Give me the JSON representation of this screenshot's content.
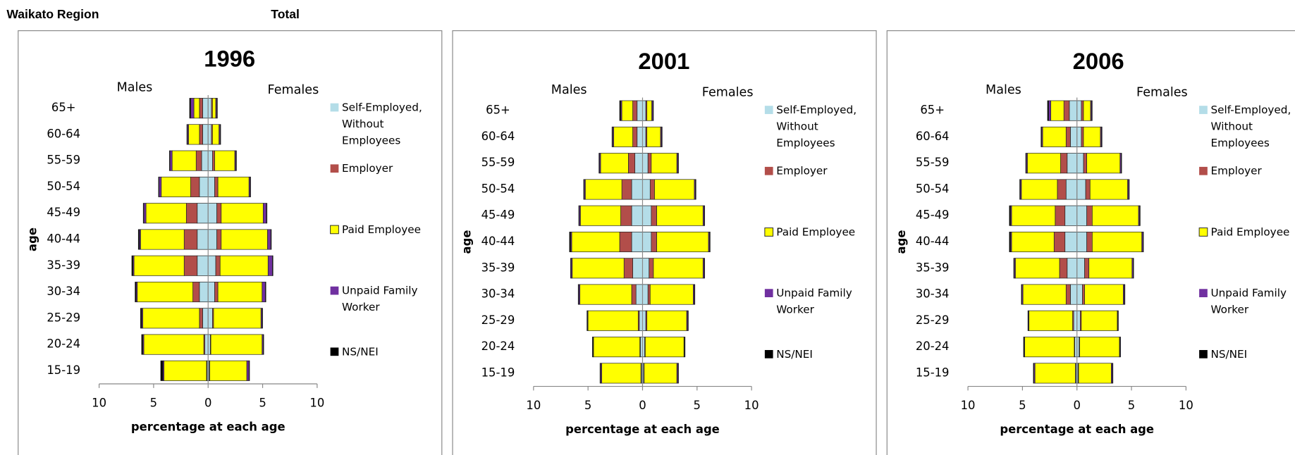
{
  "header": {
    "region": "Waikato Region",
    "subset": "Total"
  },
  "chart_data": [
    {
      "type": "pyramid",
      "title": "1996",
      "left_label": "Males",
      "right_label": "Females",
      "x_label": "percentage at each age",
      "y_label": "age",
      "categories": [
        "15-19",
        "20-24",
        "25-29",
        "30-34",
        "35-39",
        "40-44",
        "45-49",
        "50-54",
        "55-59",
        "60-64",
        "65+"
      ],
      "xlim": [
        -10,
        10
      ],
      "xticks": [
        {
          "value": -10,
          "label": "10"
        },
        {
          "value": -5,
          "label": "5"
        },
        0,
        5,
        10
      ],
      "series": [
        {
          "name": "Self-Employed, Without Employees",
          "color": "#b4dde8",
          "males": [
            -0.1,
            -0.3,
            -0.5,
            -0.8,
            -1.0,
            -1.0,
            -1.0,
            -0.8,
            -0.6,
            -0.5,
            -0.5
          ],
          "females": [
            0.1,
            0.2,
            0.4,
            0.6,
            0.7,
            0.8,
            0.8,
            0.6,
            0.4,
            0.3,
            0.3
          ]
        },
        {
          "name": "Employer",
          "color": "#b24e4a",
          "males": [
            -0.05,
            -0.1,
            -0.3,
            -0.6,
            -1.2,
            -1.2,
            -1.0,
            -0.8,
            -0.5,
            -0.3,
            -0.3
          ],
          "females": [
            0.05,
            0.05,
            0.1,
            0.3,
            0.4,
            0.4,
            0.4,
            0.3,
            0.2,
            0.1,
            0.1
          ]
        },
        {
          "name": "Paid Employee",
          "color": "#ffff00",
          "males": [
            -3.9,
            -5.5,
            -5.2,
            -5.1,
            -4.6,
            -4.0,
            -3.7,
            -2.7,
            -2.2,
            -1.0,
            -0.5
          ],
          "females": [
            3.4,
            4.7,
            4.35,
            4.05,
            4.4,
            4.25,
            3.85,
            2.85,
            1.85,
            0.6,
            0.3
          ]
        },
        {
          "name": "Unpaid Family Worker",
          "color": "#7030a0",
          "males": [
            -0.1,
            -0.1,
            -0.1,
            -0.1,
            -0.1,
            -0.1,
            -0.2,
            -0.2,
            -0.2,
            -0.1,
            -0.3
          ],
          "females": [
            0.2,
            0.1,
            0.1,
            0.3,
            0.4,
            0.3,
            0.3,
            0.1,
            0.1,
            0.1,
            0.1
          ]
        },
        {
          "name": "NS/NEI",
          "color": "#000000",
          "males": [
            -0.2,
            -0.1,
            -0.1,
            -0.1,
            -0.1,
            -0.1,
            -0.05,
            -0.05,
            -0.05,
            -0.05,
            -0.1
          ],
          "females": [
            0.05,
            0.05,
            0.05,
            0.05,
            0.05,
            0.05,
            0.05,
            0.05,
            0.05,
            0.05,
            0.05
          ]
        }
      ]
    },
    {
      "type": "pyramid",
      "title": "2001",
      "left_label": "Males",
      "right_label": "Females",
      "x_label": "percentage at each age",
      "y_label": "age",
      "categories": [
        "15-19",
        "20-24",
        "25-29",
        "30-34",
        "35-39",
        "40-44",
        "45-49",
        "50-54",
        "55-59",
        "60-64",
        "65+"
      ],
      "xlim": [
        -10,
        10
      ],
      "xticks": [
        {
          "value": -10,
          "label": "10"
        },
        {
          "value": -5,
          "label": "5"
        },
        0,
        5,
        10
      ],
      "series": [
        {
          "name": "Self-Employed, Without Employees",
          "color": "#b4dde8",
          "males": [
            -0.1,
            -0.2,
            -0.3,
            -0.6,
            -0.9,
            -1.0,
            -1.0,
            -1.0,
            -0.7,
            -0.5,
            -0.5
          ],
          "females": [
            0.1,
            0.2,
            0.3,
            0.5,
            0.6,
            0.8,
            0.8,
            0.7,
            0.5,
            0.3,
            0.3
          ]
        },
        {
          "name": "Employer",
          "color": "#b24e4a",
          "males": [
            -0.05,
            -0.05,
            -0.1,
            -0.4,
            -0.8,
            -1.1,
            -1.0,
            -0.9,
            -0.6,
            -0.4,
            -0.4
          ],
          "females": [
            0.05,
            0.05,
            0.1,
            0.2,
            0.4,
            0.5,
            0.5,
            0.4,
            0.3,
            0.1,
            0.1
          ]
        },
        {
          "name": "Paid Employee",
          "color": "#ffff00",
          "males": [
            -3.6,
            -4.25,
            -4.6,
            -4.75,
            -4.75,
            -4.4,
            -3.7,
            -3.35,
            -2.55,
            -1.75,
            -1.0
          ],
          "females": [
            3.0,
            3.55,
            3.65,
            3.95,
            4.55,
            4.75,
            4.25,
            3.65,
            2.35,
            1.25,
            0.45
          ]
        },
        {
          "name": "Unpaid Family Worker",
          "color": "#7030a0",
          "males": [
            -0.1,
            -0.05,
            -0.05,
            -0.1,
            -0.1,
            -0.1,
            -0.1,
            -0.1,
            -0.1,
            -0.1,
            -0.1
          ],
          "females": [
            0.1,
            0.05,
            0.1,
            0.1,
            0.1,
            0.1,
            0.1,
            0.1,
            0.1,
            0.1,
            0.1
          ]
        },
        {
          "name": "NS/NEI",
          "color": "#000000",
          "males": [
            -0.05,
            -0.05,
            -0.05,
            -0.05,
            -0.05,
            -0.1,
            -0.05,
            -0.05,
            -0.05,
            -0.05,
            -0.1
          ],
          "females": [
            0.05,
            0.05,
            0.05,
            0.05,
            0.05,
            0.05,
            0.05,
            0.05,
            0.05,
            0.05,
            0.05
          ]
        }
      ]
    },
    {
      "type": "pyramid",
      "title": "2006",
      "left_label": "Males",
      "right_label": "Females",
      "x_label": "percentage at each age",
      "y_label": "age",
      "categories": [
        "15-19",
        "20-24",
        "25-29",
        "30-34",
        "35-39",
        "40-44",
        "45-49",
        "50-54",
        "55-59",
        "60-64",
        "65+"
      ],
      "xlim": [
        -10,
        10
      ],
      "xticks": [
        {
          "value": -10,
          "label": "10"
        },
        {
          "value": -5,
          "label": "5"
        },
        0,
        5,
        10
      ],
      "series": [
        {
          "name": "Self-Employed, Without Employees",
          "color": "#b4dde8",
          "males": [
            -0.1,
            -0.2,
            -0.3,
            -0.6,
            -0.9,
            -1.1,
            -1.1,
            -1.0,
            -0.9,
            -0.6,
            -0.7
          ],
          "females": [
            0.1,
            0.2,
            0.3,
            0.5,
            0.7,
            0.9,
            0.9,
            0.8,
            0.6,
            0.4,
            0.4
          ]
        },
        {
          "name": "Employer",
          "color": "#b24e4a",
          "males": [
            -0.05,
            -0.05,
            -0.1,
            -0.4,
            -0.7,
            -1.0,
            -0.9,
            -0.8,
            -0.6,
            -0.4,
            -0.5
          ],
          "females": [
            0.05,
            0.05,
            0.1,
            0.2,
            0.4,
            0.5,
            0.5,
            0.4,
            0.3,
            0.2,
            0.2
          ]
        },
        {
          "name": "Paid Employee",
          "color": "#ffff00",
          "males": [
            -3.7,
            -4.55,
            -4.0,
            -3.95,
            -4.05,
            -3.9,
            -4.0,
            -3.3,
            -3.05,
            -2.15,
            -1.2
          ],
          "females": [
            3.0,
            3.65,
            3.3,
            3.55,
            3.95,
            4.55,
            4.25,
            3.45,
            3.05,
            1.55,
            0.65
          ]
        },
        {
          "name": "Unpaid Family Worker",
          "color": "#7030a0",
          "males": [
            -0.1,
            -0.05,
            -0.05,
            -0.1,
            -0.1,
            -0.1,
            -0.1,
            -0.1,
            -0.1,
            -0.1,
            -0.2
          ],
          "females": [
            0.1,
            0.05,
            0.05,
            0.1,
            0.1,
            0.1,
            0.1,
            0.1,
            0.1,
            0.1,
            0.1
          ]
        },
        {
          "name": "NS/NEI",
          "color": "#000000",
          "males": [
            -0.05,
            -0.05,
            -0.05,
            -0.05,
            -0.05,
            -0.1,
            -0.1,
            -0.05,
            -0.05,
            -0.05,
            -0.1
          ],
          "females": [
            0.05,
            0.05,
            0.05,
            0.05,
            0.05,
            0.05,
            0.05,
            0.05,
            0.05,
            0.05,
            0.05
          ]
        }
      ]
    }
  ]
}
